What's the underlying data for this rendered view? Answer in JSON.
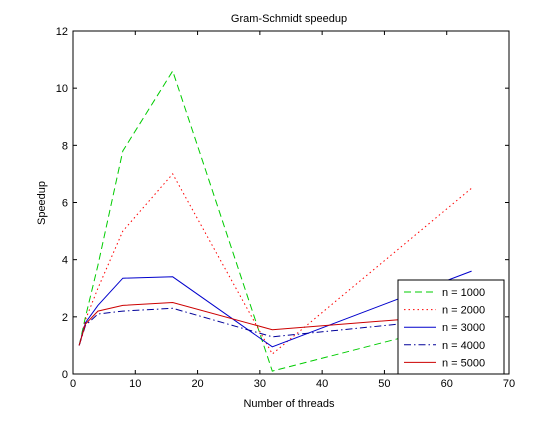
{
  "chart_data": {
    "type": "line",
    "title": "Gram-Schmidt speedup",
    "xlabel": "Number of threads",
    "ylabel": "Speedup",
    "xlim": [
      0,
      70
    ],
    "ylim": [
      0,
      12
    ],
    "xticks": [
      0,
      10,
      20,
      30,
      40,
      50,
      60,
      70
    ],
    "yticks": [
      0,
      2,
      4,
      6,
      8,
      10,
      12
    ],
    "grid": false,
    "legend": "bottom-right",
    "x": [
      1,
      2,
      4,
      8,
      16,
      32,
      64
    ],
    "series": [
      {
        "name": "n = 1000",
        "color": "#00cc00",
        "dash": "dashed",
        "values": [
          1.0,
          2.0,
          3.8,
          7.8,
          10.6,
          0.1,
          1.9
        ]
      },
      {
        "name": "n = 2000",
        "color": "#ff0000",
        "dash": "dotted",
        "values": [
          1.0,
          1.9,
          3.0,
          5.0,
          7.0,
          0.7,
          6.5
        ]
      },
      {
        "name": "n = 3000",
        "color": "#0000cc",
        "dash": "solid",
        "values": [
          1.0,
          1.8,
          2.4,
          3.35,
          3.4,
          0.95,
          3.6
        ]
      },
      {
        "name": "n = 4000",
        "color": "#000099",
        "dash": "dashdot",
        "values": [
          1.0,
          1.7,
          2.1,
          2.2,
          2.3,
          1.3,
          2.0
        ]
      },
      {
        "name": "n = 5000",
        "color": "#cc0000",
        "dash": "solid",
        "values": [
          1.0,
          1.75,
          2.2,
          2.4,
          2.5,
          1.55,
          2.1
        ]
      }
    ]
  }
}
